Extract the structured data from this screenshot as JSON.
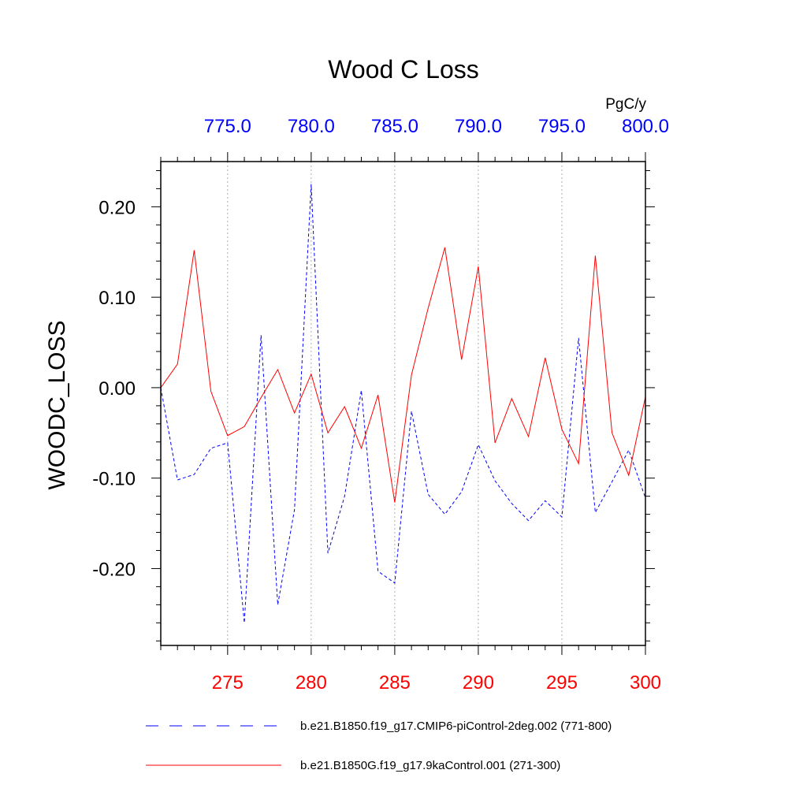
{
  "chart_data": {
    "type": "line",
    "title": "Wood C Loss",
    "units": "PgC/y",
    "ylabel": "WOODC_LOSS",
    "ylim": [
      -0.285,
      0.25
    ],
    "y_ticks": [
      0.2,
      0.1,
      0.0,
      -0.1,
      -0.2
    ],
    "y_tick_labels": [
      "0.20",
      "0.10",
      "0.00",
      "-0.10",
      "-0.20"
    ],
    "bottom_axis": {
      "range": [
        271,
        300
      ],
      "ticks": [
        275,
        280,
        285,
        290,
        295,
        300
      ],
      "tick_labels": [
        "275",
        "280",
        "285",
        "290",
        "295",
        "300"
      ],
      "color": "#ff0000"
    },
    "top_axis": {
      "range": [
        771,
        800
      ],
      "ticks": [
        775,
        780,
        785,
        790,
        795,
        800
      ],
      "tick_labels": [
        "775.0",
        "780.0",
        "785.0",
        "790.0",
        "795.0",
        "800.0"
      ],
      "color": "#0000ff"
    },
    "grid": "vertical dotted at major ticks",
    "legend_position": "bottom",
    "series": [
      {
        "name": "b.e21.B1850.f19_g17.CMIP6-piControl-2deg.002 (771-800)",
        "axis": "top",
        "color": "#0000ff",
        "dash": "dashed",
        "x": [
          771,
          772,
          773,
          774,
          775,
          776,
          777,
          778,
          779,
          780,
          781,
          782,
          783,
          784,
          785,
          786,
          787,
          788,
          789,
          790,
          791,
          792,
          793,
          794,
          795,
          796,
          797,
          798,
          799,
          800
        ],
        "values": [
          0.0,
          -0.102,
          -0.096,
          -0.067,
          -0.061,
          -0.26,
          0.058,
          -0.24,
          -0.135,
          0.225,
          -0.183,
          -0.12,
          -0.003,
          -0.203,
          -0.216,
          -0.026,
          -0.118,
          -0.14,
          -0.115,
          -0.063,
          -0.103,
          -0.128,
          -0.147,
          -0.125,
          -0.143,
          0.055,
          -0.138,
          -0.104,
          -0.069,
          -0.122
        ]
      },
      {
        "name": "b.e21.B1850G.f19_g17.9kaControl.001 (271-300)",
        "axis": "bottom",
        "color": "#ff0000",
        "dash": "solid",
        "x": [
          271,
          272,
          273,
          274,
          275,
          276,
          277,
          278,
          279,
          280,
          281,
          282,
          283,
          284,
          285,
          286,
          287,
          288,
          289,
          290,
          291,
          292,
          293,
          294,
          295,
          296,
          297,
          298,
          299,
          300
        ],
        "values": [
          0.0,
          0.026,
          0.152,
          -0.004,
          -0.053,
          -0.043,
          -0.011,
          0.02,
          -0.028,
          0.015,
          -0.05,
          -0.021,
          -0.067,
          -0.008,
          -0.127,
          0.014,
          0.088,
          0.155,
          0.031,
          0.134,
          -0.061,
          -0.012,
          -0.054,
          0.033,
          -0.046,
          -0.084,
          0.146,
          -0.05,
          -0.097,
          -0.01
        ]
      }
    ]
  }
}
